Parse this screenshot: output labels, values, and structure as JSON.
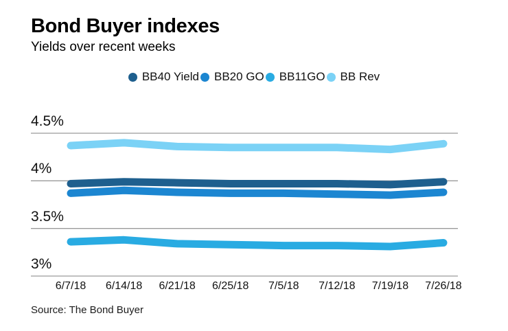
{
  "header": {
    "title": "Bond Buyer indexes",
    "subtitle": "Yields over recent weeks"
  },
  "source": {
    "label": "Source: The Bond Buyer"
  },
  "chart_data": {
    "type": "line",
    "title": "Bond Buyer indexes",
    "subtitle": "Yields over recent weeks",
    "categories": [
      "6/7/18",
      "6/14/18",
      "6/21/18",
      "6/25/18",
      "7/5/18",
      "7/12/18",
      "7/19/18",
      "7/26/18"
    ],
    "series": [
      {
        "name": "BB40 Yield",
        "color": "#1E5F8E",
        "values": [
          3.97,
          3.99,
          3.98,
          3.97,
          3.97,
          3.97,
          3.96,
          3.99
        ]
      },
      {
        "name": "BB20 GO",
        "color": "#1C86D1",
        "values": [
          3.87,
          3.9,
          3.88,
          3.87,
          3.87,
          3.86,
          3.85,
          3.88
        ]
      },
      {
        "name": "BB11GO",
        "color": "#29ABE2",
        "values": [
          3.36,
          3.38,
          3.34,
          3.33,
          3.32,
          3.32,
          3.31,
          3.35
        ]
      },
      {
        "name": "BB Rev",
        "color": "#7BD2F6",
        "values": [
          4.37,
          4.4,
          4.36,
          4.35,
          4.35,
          4.35,
          4.33,
          4.39
        ]
      }
    ],
    "y_ticks": [
      {
        "value": 4.5,
        "label": "4.5%"
      },
      {
        "value": 4.0,
        "label": "4%"
      },
      {
        "value": 3.5,
        "label": "3.5%"
      },
      {
        "value": 3.0,
        "label": "3%"
      }
    ],
    "ylim": [
      3.0,
      4.5
    ],
    "xlabel": "",
    "ylabel": "",
    "grid": true,
    "grid_color": "#9a9a9a",
    "legend_position": "top",
    "line_width": 11,
    "draw_order": [
      3,
      2,
      1,
      0
    ]
  }
}
